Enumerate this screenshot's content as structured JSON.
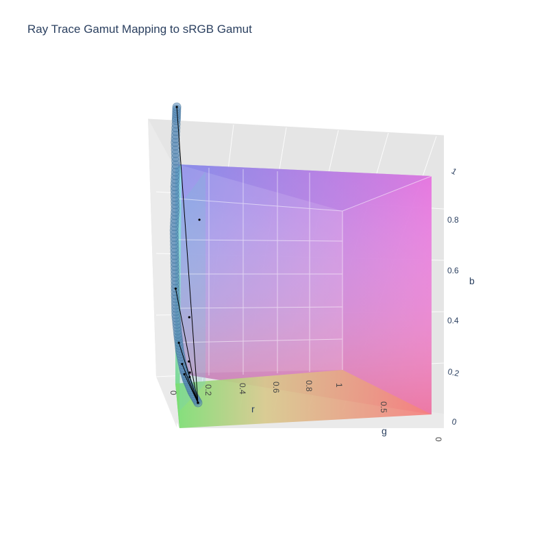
{
  "title": "Ray Trace Gamut Mapping to sRGB Gamut",
  "chart_data": {
    "type": "scatter3d",
    "title": "Ray Trace Gamut Mapping to sRGB Gamut",
    "axes": {
      "r": {
        "label": "r",
        "ticks": [
          "0",
          "0.2",
          "0.4",
          "0.6",
          "0.8",
          "1"
        ],
        "range": [
          0,
          1
        ]
      },
      "g": {
        "label": "g",
        "ticks": [
          "0",
          "0.5"
        ],
        "range": [
          0,
          1
        ]
      },
      "b": {
        "label": "b",
        "ticks": [
          "0",
          "0.2",
          "0.4",
          "0.6",
          "0.8",
          "1"
        ],
        "range": [
          0,
          1
        ]
      }
    },
    "gamut_surface": {
      "name": "sRGB gamut",
      "shape": "cube",
      "colors": [
        "#000000",
        "#ff0000",
        "#00ff00",
        "#0000ff",
        "#ffff00",
        "#ff00ff",
        "#00ffff",
        "#ffffff"
      ]
    },
    "curve": {
      "marker_color": "#5b8db8",
      "points_rgb": [
        [
          0.0,
          0.0,
          0.0
        ],
        [
          -0.05,
          0.02,
          0.06
        ],
        [
          -0.09,
          0.03,
          0.12
        ],
        [
          -0.12,
          0.04,
          0.18
        ],
        [
          -0.15,
          0.05,
          0.26
        ],
        [
          -0.17,
          0.06,
          0.34
        ],
        [
          -0.19,
          0.07,
          0.43
        ],
        [
          -0.2,
          0.08,
          0.52
        ],
        [
          -0.21,
          0.09,
          0.62
        ],
        [
          -0.22,
          0.1,
          0.72
        ],
        [
          -0.23,
          0.11,
          0.82
        ],
        [
          -0.23,
          0.12,
          0.92
        ],
        [
          -0.24,
          0.13,
          1.02
        ],
        [
          -0.24,
          0.14,
          1.12
        ],
        [
          -0.25,
          0.14,
          1.22
        ],
        [
          -0.25,
          0.15,
          1.32
        ],
        [
          -0.25,
          0.15,
          1.38
        ]
      ]
    },
    "rays": {
      "line_color": "#000000",
      "origin_rgb": [
        0.0,
        0.0,
        0.0
      ],
      "endpoints_rgb": [
        [
          -0.25,
          0.15,
          1.38
        ],
        [
          -0.2,
          0.08,
          0.55
        ],
        [
          -0.16,
          0.06,
          0.3
        ],
        [
          -0.13,
          0.05,
          0.2
        ],
        [
          -0.11,
          0.04,
          0.15
        ]
      ],
      "intersections_rgb": [
        [
          -0.04,
          0.02,
          0.82
        ],
        [
          -0.09,
          0.04,
          0.4
        ],
        [
          -0.08,
          0.03,
          0.2
        ],
        [
          -0.07,
          0.03,
          0.15
        ],
        [
          -0.07,
          0.03,
          0.13
        ]
      ]
    }
  }
}
